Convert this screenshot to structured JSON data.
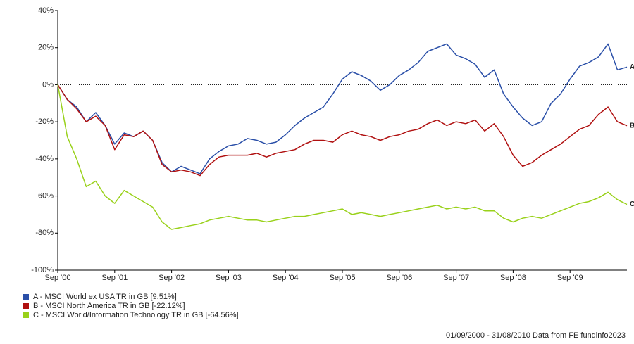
{
  "chart_data": {
    "type": "line",
    "categories": [
      "Sep '00",
      null,
      null,
      null,
      null,
      null,
      "Sep '01",
      null,
      null,
      null,
      null,
      null,
      "Sep '02",
      null,
      null,
      null,
      null,
      null,
      "Sep '03",
      null,
      null,
      null,
      null,
      null,
      "Sep '04",
      null,
      null,
      null,
      null,
      null,
      "Sep '05",
      null,
      null,
      null,
      null,
      null,
      "Sep '06",
      null,
      null,
      null,
      null,
      null,
      "Sep '07",
      null,
      null,
      null,
      null,
      null,
      "Sep '08",
      null,
      null,
      null,
      null,
      null,
      "Sep '09",
      null,
      null,
      null,
      null,
      null,
      null
    ],
    "series": [
      {
        "name": "A - MSCI World ex USA TR in GB [9.51%]",
        "label": "A",
        "color": "#2a4fa8",
        "values": [
          0,
          -8,
          -12,
          -20,
          -15,
          -22,
          -32,
          -26,
          -28,
          -25,
          -30,
          -42,
          -47,
          -44,
          -46,
          -48,
          -40,
          -36,
          -33,
          -32,
          -29,
          -30,
          -32,
          -31,
          -27,
          -22,
          -18,
          -15,
          -12,
          -5,
          3,
          7,
          5,
          2,
          -3,
          0,
          5,
          8,
          12,
          18,
          20,
          22,
          16,
          14,
          11,
          4,
          8,
          -5,
          -12,
          -18,
          -22,
          -20,
          -10,
          -5,
          3,
          10,
          12,
          15,
          22,
          8,
          9.51
        ]
      },
      {
        "name": "B - MSCI North America TR in GB [-22.12%]",
        "label": "B",
        "color": "#b01010",
        "values": [
          0,
          -8,
          -13,
          -20,
          -17,
          -22,
          -35,
          -27,
          -28,
          -25,
          -30,
          -43,
          -47,
          -46,
          -47,
          -49,
          -43,
          -39,
          -38,
          -38,
          -38,
          -37,
          -39,
          -37,
          -36,
          -35,
          -32,
          -30,
          -30,
          -31,
          -27,
          -25,
          -27,
          -28,
          -30,
          -28,
          -27,
          -25,
          -24,
          -21,
          -19,
          -22,
          -20,
          -21,
          -19,
          -25,
          -21,
          -28,
          -38,
          -44,
          -42,
          -38,
          -35,
          -32,
          -28,
          -24,
          -22,
          -16,
          -12,
          -20,
          -22.12
        ]
      },
      {
        "name": "C - MSCI World/Information Technology TR in GB [-64.56%]",
        "label": "C",
        "color": "#99d11a",
        "values": [
          0,
          -28,
          -40,
          -55,
          -52,
          -60,
          -64,
          -57,
          -60,
          -63,
          -66,
          -74,
          -78,
          -77,
          -76,
          -75,
          -73,
          -72,
          -71,
          -72,
          -73,
          -73,
          -74,
          -73,
          -72,
          -71,
          -71,
          -70,
          -69,
          -68,
          -67,
          -70,
          -69,
          -70,
          -71,
          -70,
          -69,
          -68,
          -67,
          -66,
          -65,
          -67,
          -66,
          -67,
          -66,
          -68,
          -68,
          -72,
          -74,
          -72,
          -71,
          -72,
          -70,
          -68,
          -66,
          -64,
          -63,
          -61,
          -58,
          -62,
          -64.56
        ]
      }
    ],
    "ylim": [
      -100,
      40
    ],
    "yticks": [
      {
        "value": -100,
        "label": "-100%"
      },
      {
        "value": -80,
        "label": "-80%"
      },
      {
        "value": -60,
        "label": "-60%"
      },
      {
        "value": -40,
        "label": "-40%"
      },
      {
        "value": -20,
        "label": "-20%"
      },
      {
        "value": 0,
        "label": "0%"
      },
      {
        "value": 20,
        "label": "20%"
      },
      {
        "value": 40,
        "label": "40%"
      }
    ],
    "grid": false,
    "zero_line": true,
    "footer": "01/09/2000 - 31/08/2010 Data from FE fundinfo2023"
  }
}
